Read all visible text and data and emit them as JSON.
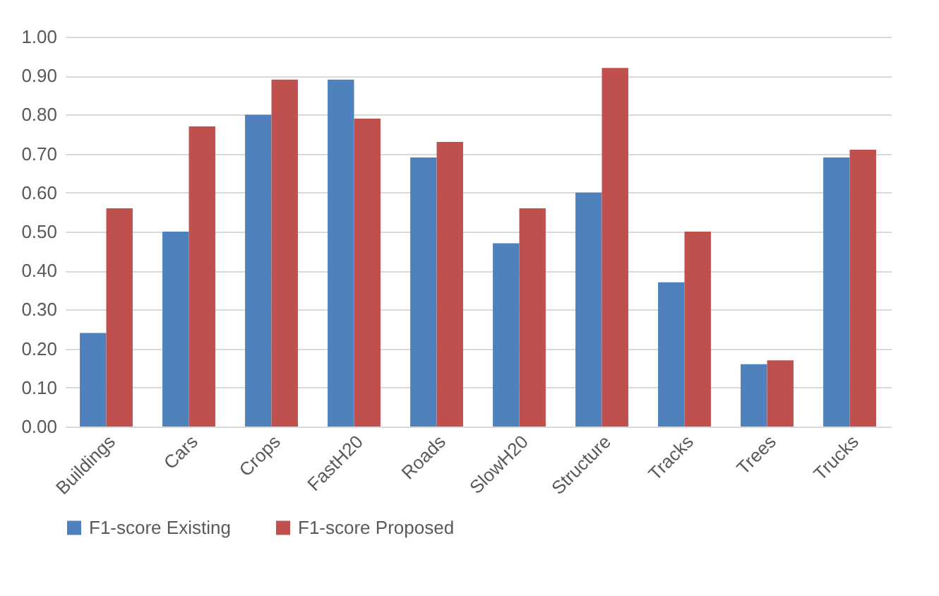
{
  "chart_data": {
    "type": "bar",
    "categories": [
      "Buildings",
      "Cars",
      "Crops",
      "FastH20",
      "Roads",
      "SlowH20",
      "Structure",
      "Tracks",
      "Trees",
      "Trucks"
    ],
    "series": [
      {
        "name": "F1-score Existing",
        "color": "#4f81bd",
        "values": [
          0.24,
          0.5,
          0.8,
          0.89,
          0.69,
          0.47,
          0.6,
          0.37,
          0.16,
          0.69
        ]
      },
      {
        "name": "F1-score Proposed",
        "color": "#c0504d",
        "values": [
          0.56,
          0.77,
          0.89,
          0.79,
          0.73,
          0.56,
          0.92,
          0.5,
          0.17,
          0.71
        ]
      }
    ],
    "ylim": [
      0,
      1
    ],
    "yticks": [
      {
        "value": 0,
        "label": "0.00"
      },
      {
        "value": 0.1,
        "label": "0.10"
      },
      {
        "value": 0.2,
        "label": "0.20"
      },
      {
        "value": 0.3,
        "label": "0.30"
      },
      {
        "value": 0.4,
        "label": "0.40"
      },
      {
        "value": 0.5,
        "label": "0.50"
      },
      {
        "value": 0.6,
        "label": "0.60"
      },
      {
        "value": 0.7,
        "label": "0.70"
      },
      {
        "value": 0.8,
        "label": "0.80"
      },
      {
        "value": 0.9,
        "label": "0.90"
      },
      {
        "value": 1,
        "label": "1.00"
      }
    ],
    "grid": "y",
    "legend": "bottom"
  }
}
